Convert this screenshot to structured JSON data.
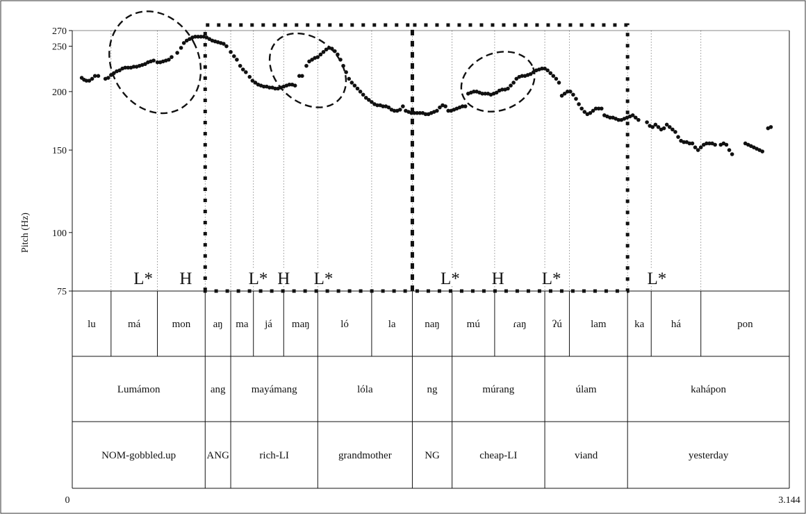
{
  "chart_data": {
    "type": "scatter",
    "title": "",
    "ylabel": "Pitch (Hz)",
    "xlabel": "",
    "scale": "log",
    "ylim": [
      75,
      270
    ],
    "xlim": [
      0,
      3.144
    ],
    "x_tick_labels": [
      "0",
      "3.144"
    ],
    "y_ticks": [
      75,
      100,
      150,
      200,
      250,
      270
    ],
    "series": [
      {
        "points": [
          [
            0.02,
            214
          ],
          [
            0.025,
            212
          ],
          [
            0.03,
            211
          ],
          [
            0.036,
            211
          ],
          [
            0.042,
            213
          ],
          [
            0.048,
            216
          ],
          [
            0.055,
            216
          ],
          [
            0.07,
            213
          ],
          [
            0.076,
            214
          ],
          [
            0.082,
            217
          ],
          [
            0.088,
            219
          ],
          [
            0.094,
            221
          ],
          [
            0.1,
            222
          ],
          [
            0.106,
            224
          ],
          [
            0.112,
            225
          ],
          [
            0.118,
            225
          ],
          [
            0.124,
            225
          ],
          [
            0.13,
            226
          ],
          [
            0.136,
            226
          ],
          [
            0.142,
            227
          ],
          [
            0.148,
            228
          ],
          [
            0.154,
            229
          ],
          [
            0.16,
            231
          ],
          [
            0.166,
            232
          ],
          [
            0.172,
            233
          ],
          [
            0.18,
            231
          ],
          [
            0.186,
            231
          ],
          [
            0.192,
            232
          ],
          [
            0.198,
            233
          ],
          [
            0.204,
            234
          ],
          [
            0.21,
            237
          ],
          [
            0.222,
            242
          ],
          [
            0.23,
            248
          ],
          [
            0.236,
            254
          ],
          [
            0.242,
            257
          ],
          [
            0.248,
            259
          ],
          [
            0.254,
            261
          ],
          [
            0.26,
            262
          ],
          [
            0.266,
            262
          ],
          [
            0.272,
            262
          ],
          [
            0.278,
            262
          ],
          [
            0.284,
            261
          ],
          [
            0.29,
            259
          ],
          [
            0.296,
            257
          ],
          [
            0.302,
            256
          ],
          [
            0.308,
            255
          ],
          [
            0.314,
            254
          ],
          [
            0.32,
            253
          ],
          [
            0.326,
            250
          ],
          [
            0.335,
            243
          ],
          [
            0.342,
            238
          ],
          [
            0.348,
            234
          ],
          [
            0.355,
            227
          ],
          [
            0.361,
            223
          ],
          [
            0.367,
            220
          ],
          [
            0.375,
            215
          ],
          [
            0.381,
            211
          ],
          [
            0.387,
            209
          ],
          [
            0.393,
            207
          ],
          [
            0.399,
            206
          ],
          [
            0.405,
            205
          ],
          [
            0.411,
            205
          ],
          [
            0.417,
            204
          ],
          [
            0.423,
            204
          ],
          [
            0.429,
            203
          ],
          [
            0.435,
            203
          ],
          [
            0.441,
            204
          ],
          [
            0.447,
            205
          ],
          [
            0.453,
            206
          ],
          [
            0.459,
            207
          ],
          [
            0.465,
            207
          ],
          [
            0.471,
            206
          ],
          [
            0.48,
            216
          ],
          [
            0.486,
            216
          ],
          [
            0.495,
            227
          ],
          [
            0.501,
            232
          ],
          [
            0.507,
            234
          ],
          [
            0.513,
            236
          ],
          [
            0.519,
            237
          ],
          [
            0.525,
            240
          ],
          [
            0.531,
            243
          ],
          [
            0.537,
            246
          ],
          [
            0.543,
            248
          ],
          [
            0.549,
            247
          ],
          [
            0.555,
            244
          ],
          [
            0.561,
            240
          ],
          [
            0.567,
            234
          ],
          [
            0.573,
            227
          ],
          [
            0.579,
            220
          ],
          [
            0.585,
            213
          ],
          [
            0.591,
            209
          ],
          [
            0.597,
            206
          ],
          [
            0.603,
            203
          ],
          [
            0.609,
            200
          ],
          [
            0.615,
            197
          ],
          [
            0.621,
            194
          ],
          [
            0.627,
            192
          ],
          [
            0.633,
            190
          ],
          [
            0.639,
            188
          ],
          [
            0.645,
            187
          ],
          [
            0.651,
            187
          ],
          [
            0.657,
            186
          ],
          [
            0.663,
            186
          ],
          [
            0.669,
            185
          ],
          [
            0.675,
            183
          ],
          [
            0.681,
            182
          ],
          [
            0.687,
            182
          ],
          [
            0.693,
            183
          ],
          [
            0.699,
            186
          ],
          [
            0.705,
            182
          ],
          [
            0.711,
            181
          ],
          [
            0.717,
            180
          ],
          [
            0.723,
            180
          ],
          [
            0.729,
            180
          ],
          [
            0.735,
            180
          ],
          [
            0.741,
            180
          ],
          [
            0.747,
            179
          ],
          [
            0.753,
            179
          ],
          [
            0.759,
            180
          ],
          [
            0.765,
            181
          ],
          [
            0.771,
            182
          ],
          [
            0.777,
            185
          ],
          [
            0.783,
            187
          ],
          [
            0.789,
            186
          ],
          [
            0.795,
            182
          ],
          [
            0.801,
            182
          ],
          [
            0.807,
            183
          ],
          [
            0.813,
            184
          ],
          [
            0.819,
            185
          ],
          [
            0.825,
            186
          ],
          [
            0.831,
            186
          ],
          [
            0.837,
            198
          ],
          [
            0.843,
            199
          ],
          [
            0.849,
            200
          ],
          [
            0.855,
            200
          ],
          [
            0.861,
            199
          ],
          [
            0.867,
            198
          ],
          [
            0.873,
            198
          ],
          [
            0.879,
            198
          ],
          [
            0.885,
            197
          ],
          [
            0.891,
            198
          ],
          [
            0.897,
            199
          ],
          [
            0.903,
            201
          ],
          [
            0.909,
            202
          ],
          [
            0.915,
            202
          ],
          [
            0.921,
            203
          ],
          [
            0.927,
            206
          ],
          [
            0.933,
            209
          ],
          [
            0.939,
            213
          ],
          [
            0.945,
            215
          ],
          [
            0.951,
            216
          ],
          [
            0.957,
            216
          ],
          [
            0.963,
            217
          ],
          [
            0.969,
            218
          ],
          [
            0.975,
            220
          ],
          [
            0.981,
            222
          ],
          [
            0.987,
            223
          ],
          [
            0.993,
            224
          ],
          [
            0.999,
            224
          ],
          [
            1.005,
            222
          ],
          [
            1.011,
            219
          ],
          [
            1.017,
            216
          ],
          [
            1.023,
            213
          ],
          [
            1.029,
            209
          ],
          [
            1.035,
            196
          ],
          [
            1.041,
            198
          ],
          [
            1.047,
            200
          ],
          [
            1.053,
            200
          ],
          [
            1.059,
            197
          ],
          [
            1.065,
            193
          ],
          [
            1.071,
            188
          ],
          [
            1.077,
            184
          ],
          [
            1.083,
            181
          ],
          [
            1.089,
            179
          ],
          [
            1.095,
            180
          ],
          [
            1.101,
            182
          ],
          [
            1.107,
            184
          ],
          [
            1.113,
            184
          ],
          [
            1.119,
            184
          ],
          [
            1.125,
            178
          ],
          [
            1.131,
            177
          ],
          [
            1.137,
            176
          ],
          [
            1.143,
            176
          ],
          [
            1.149,
            175
          ],
          [
            1.155,
            174
          ],
          [
            1.161,
            174
          ],
          [
            1.167,
            175
          ],
          [
            1.173,
            176
          ],
          [
            1.179,
            177
          ],
          [
            1.185,
            178
          ],
          [
            1.191,
            176
          ],
          [
            1.197,
            174
          ],
          [
            1.215,
            172
          ],
          [
            1.221,
            169
          ],
          [
            1.227,
            168
          ],
          [
            1.233,
            170
          ],
          [
            1.239,
            168
          ],
          [
            1.245,
            166
          ],
          [
            1.251,
            167
          ],
          [
            1.257,
            170
          ],
          [
            1.263,
            168
          ],
          [
            1.269,
            166
          ],
          [
            1.275,
            164
          ],
          [
            1.281,
            160
          ],
          [
            1.287,
            157
          ],
          [
            1.293,
            156
          ],
          [
            1.299,
            156
          ],
          [
            1.305,
            155
          ],
          [
            1.311,
            155
          ],
          [
            1.317,
            152
          ],
          [
            1.323,
            150
          ],
          [
            1.329,
            152
          ],
          [
            1.335,
            154
          ],
          [
            1.341,
            155
          ],
          [
            1.347,
            155
          ],
          [
            1.353,
            155
          ],
          [
            1.359,
            154
          ],
          [
            1.371,
            154
          ],
          [
            1.377,
            155
          ],
          [
            1.383,
            154
          ],
          [
            1.389,
            150
          ],
          [
            1.395,
            147
          ],
          [
            1.423,
            155
          ],
          [
            1.429,
            154
          ],
          [
            1.435,
            153
          ],
          [
            1.441,
            152
          ],
          [
            1.447,
            151
          ],
          [
            1.453,
            150
          ],
          [
            1.459,
            149
          ],
          [
            1.471,
            167
          ],
          [
            1.477,
            168
          ]
        ]
      }
    ],
    "ellipses": [
      {
        "cx": 0.175,
        "cy": 231,
        "rx": 0.092,
        "ry": 0.26,
        "angle": -28
      },
      {
        "cx": 0.498,
        "cy": 222,
        "rx": 0.067,
        "ry": 0.21,
        "angle": -48
      },
      {
        "cx": 0.9,
        "cy": 210,
        "rx": 0.08,
        "ry": 0.14,
        "angle": -22
      }
    ],
    "tones": [
      {
        "label": "L*",
        "x": 0.15
      },
      {
        "label": "H",
        "x": 0.24
      },
      {
        "label": "L*",
        "x": 0.393
      },
      {
        "label": "H",
        "x": 0.447
      },
      {
        "label": "L*",
        "x": 0.531
      },
      {
        "label": "L*",
        "x": 0.799
      },
      {
        "label": "H",
        "x": 0.9
      },
      {
        "label": "L*",
        "x": 1.013
      },
      {
        "label": "L*",
        "x": 1.236
      }
    ],
    "syllables": [
      {
        "label": "lu",
        "start": 0.0,
        "end": 0.082
      },
      {
        "label": "má",
        "start": 0.082,
        "end": 0.18
      },
      {
        "label": "mon",
        "start": 0.18,
        "end": 0.281
      },
      {
        "label": "aŋ",
        "start": 0.281,
        "end": 0.335
      },
      {
        "label": "ma",
        "start": 0.335,
        "end": 0.383
      },
      {
        "label": "já",
        "start": 0.383,
        "end": 0.447
      },
      {
        "label": "maŋ",
        "start": 0.447,
        "end": 0.519
      },
      {
        "label": "ló",
        "start": 0.519,
        "end": 0.633
      },
      {
        "label": "la",
        "start": 0.633,
        "end": 0.719
      },
      {
        "label": "naŋ",
        "start": 0.719,
        "end": 0.803
      },
      {
        "label": "mú",
        "start": 0.803,
        "end": 0.893
      },
      {
        "label": "ɾaŋ",
        "start": 0.893,
        "end": 0.999
      },
      {
        "label": "ʔú",
        "start": 0.999,
        "end": 1.051
      },
      {
        "label": "lam",
        "start": 1.051,
        "end": 1.174
      },
      {
        "label": "ka",
        "start": 1.174,
        "end": 1.224
      },
      {
        "label": "há",
        "start": 1.224,
        "end": 1.329
      },
      {
        "label": "pon",
        "start": 1.329,
        "end": 1.516
      }
    ],
    "words": [
      {
        "label": "Lumámon",
        "start": 0.0,
        "end": 0.281
      },
      {
        "label": "ang",
        "start": 0.281,
        "end": 0.335
      },
      {
        "label": "mayámang",
        "start": 0.335,
        "end": 0.519
      },
      {
        "label": "lóla",
        "start": 0.519,
        "end": 0.719
      },
      {
        "label": "ng",
        "start": 0.719,
        "end": 0.803
      },
      {
        "label": "múrang",
        "start": 0.803,
        "end": 0.999
      },
      {
        "label": "úlam",
        "start": 0.999,
        "end": 1.174
      },
      {
        "label": "kahápon",
        "start": 1.174,
        "end": 1.516
      }
    ],
    "glosses": [
      {
        "label": "NOM-gobbled.up",
        "start": 0.0,
        "end": 0.281
      },
      {
        "label": "ANG",
        "start": 0.281,
        "end": 0.335
      },
      {
        "label": "rich-LI",
        "start": 0.335,
        "end": 0.519
      },
      {
        "label": "grandmother",
        "start": 0.519,
        "end": 0.719
      },
      {
        "label": "NG",
        "start": 0.719,
        "end": 0.803
      },
      {
        "label": "cheap-LI",
        "start": 0.803,
        "end": 0.999
      },
      {
        "label": "viand",
        "start": 0.999,
        "end": 1.174
      },
      {
        "label": "yesterday",
        "start": 1.174,
        "end": 1.516
      }
    ],
    "phrase_boundaries": [
      {
        "start": 0.281,
        "end": 0.719
      },
      {
        "start": 0.719,
        "end": 1.174
      }
    ],
    "grid": true,
    "legend": "none"
  }
}
